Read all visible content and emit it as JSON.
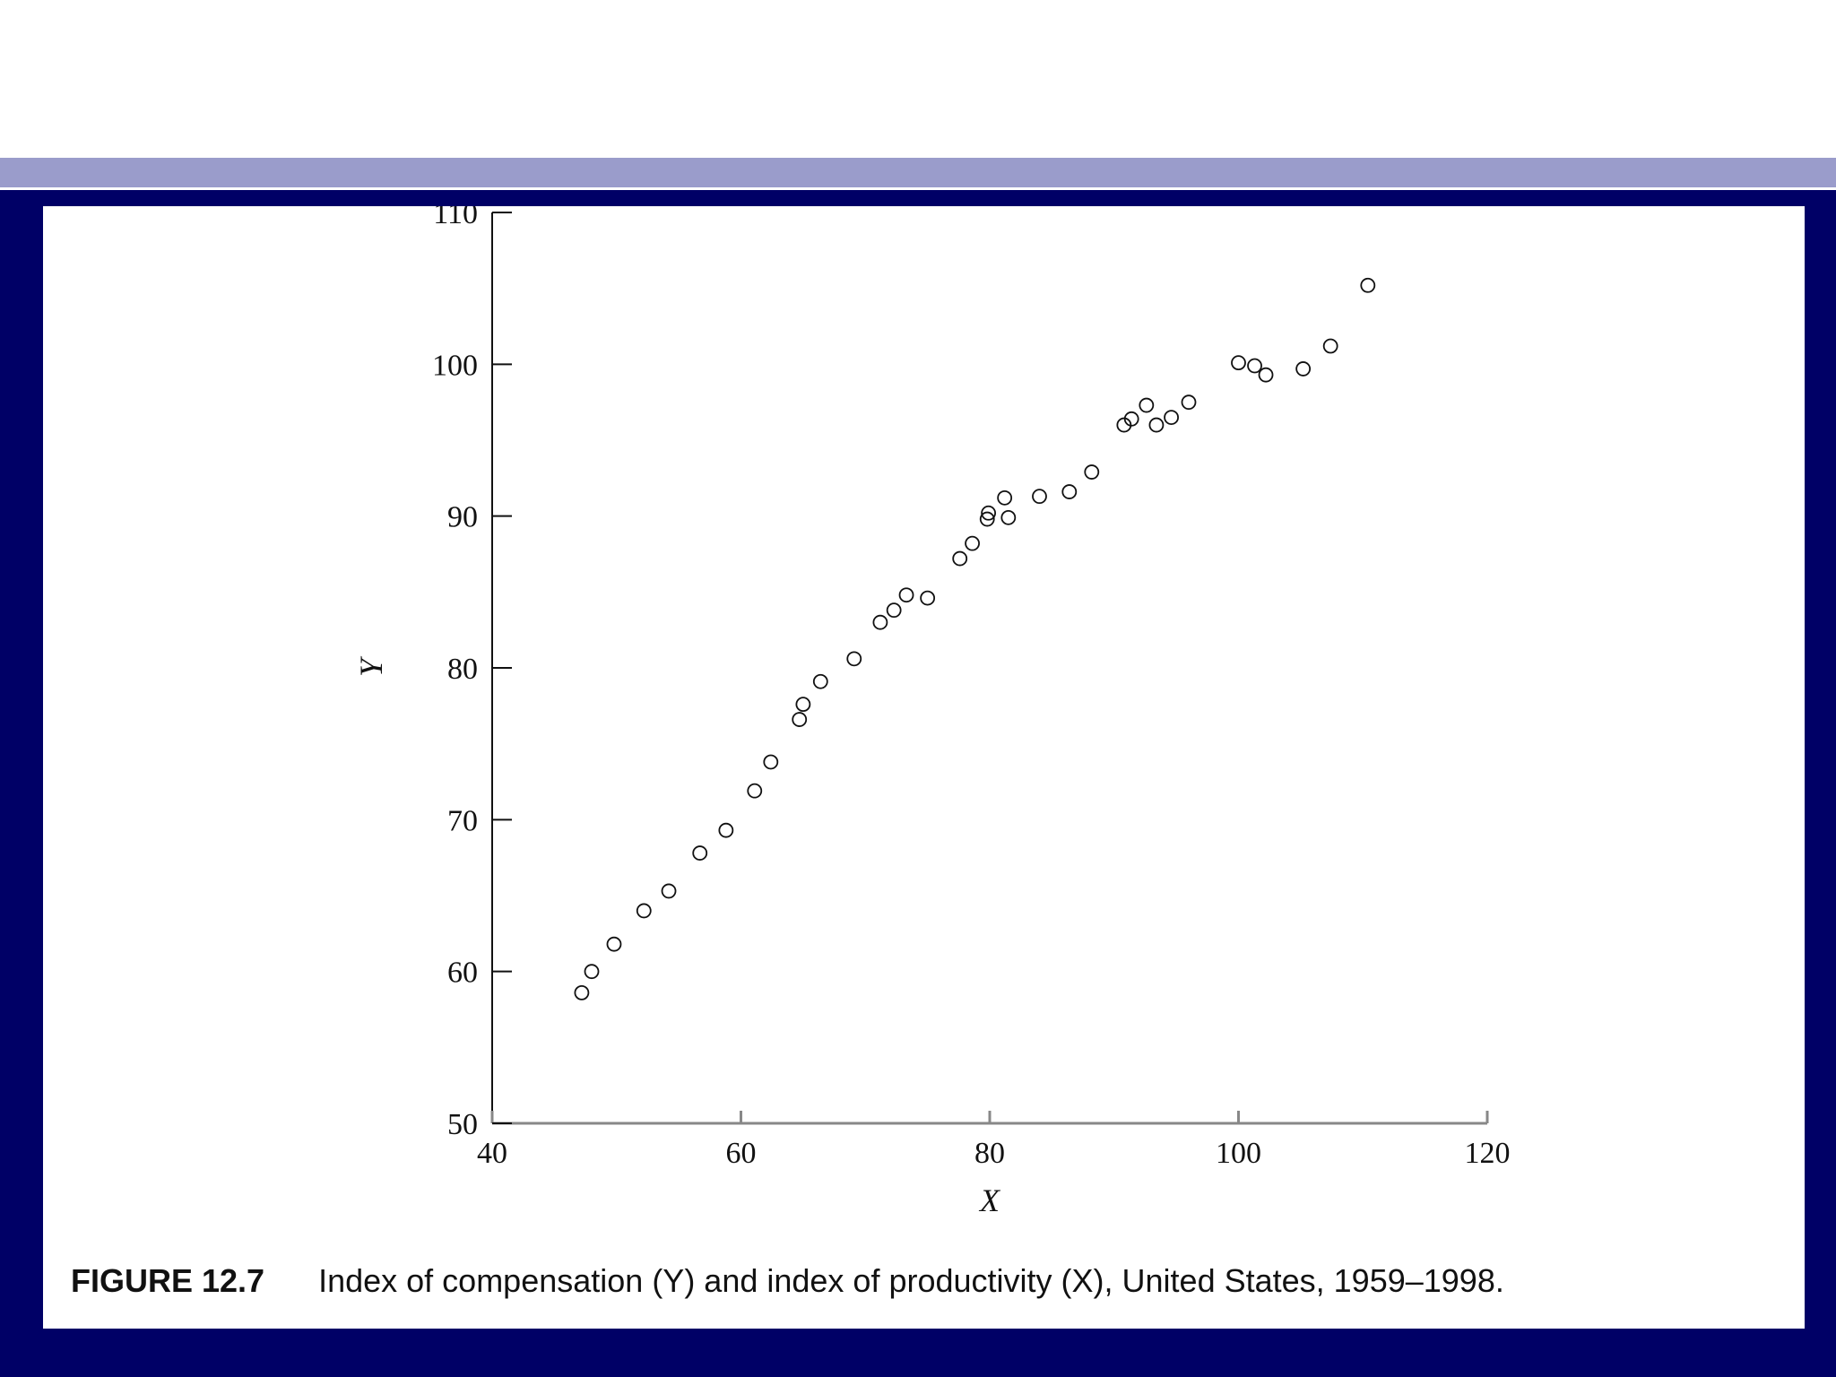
{
  "caption": {
    "figure_number": "FIGURE 12.7",
    "text": "Index of compensation (Y) and index of productivity (X), United States, 1959–1998."
  },
  "colors": {
    "frame": "#000066",
    "stripe": "#9a9ccb",
    "panel": "#ffffff",
    "ink": "#111111"
  },
  "chart_data": {
    "type": "scatter",
    "title": "",
    "xlabel": "X",
    "ylabel": "Y",
    "xlim": [
      40,
      120
    ],
    "ylim": [
      50,
      110
    ],
    "xticks": [
      "40",
      "60",
      "80",
      "100",
      "120"
    ],
    "yticks": [
      "50",
      "60",
      "70",
      "80",
      "90",
      "100",
      "110"
    ],
    "grid": false,
    "legend": "none",
    "marker": "open-circle",
    "points": [
      [
        47.2,
        58.6
      ],
      [
        48.0,
        60.0
      ],
      [
        49.8,
        61.8
      ],
      [
        52.2,
        64.0
      ],
      [
        54.2,
        65.3
      ],
      [
        56.7,
        67.8
      ],
      [
        58.8,
        69.3
      ],
      [
        61.1,
        71.9
      ],
      [
        62.4,
        73.8
      ],
      [
        64.7,
        76.6
      ],
      [
        65.0,
        77.6
      ],
      [
        66.4,
        79.1
      ],
      [
        69.1,
        80.6
      ],
      [
        71.2,
        83.0
      ],
      [
        72.3,
        83.8
      ],
      [
        73.3,
        84.8
      ],
      [
        75.0,
        84.6
      ],
      [
        77.6,
        87.2
      ],
      [
        78.6,
        88.2
      ],
      [
        79.8,
        89.8
      ],
      [
        79.9,
        90.2
      ],
      [
        81.2,
        91.2
      ],
      [
        81.5,
        89.9
      ],
      [
        84.0,
        91.3
      ],
      [
        86.4,
        91.6
      ],
      [
        88.2,
        92.9
      ],
      [
        90.8,
        96.0
      ],
      [
        91.4,
        96.4
      ],
      [
        92.6,
        97.3
      ],
      [
        93.4,
        96.0
      ],
      [
        94.6,
        96.5
      ],
      [
        96.0,
        97.5
      ],
      [
        100.0,
        100.1
      ],
      [
        101.3,
        99.9
      ],
      [
        102.2,
        99.3
      ],
      [
        105.2,
        99.7
      ],
      [
        107.4,
        101.2
      ],
      [
        110.4,
        105.2
      ]
    ]
  }
}
